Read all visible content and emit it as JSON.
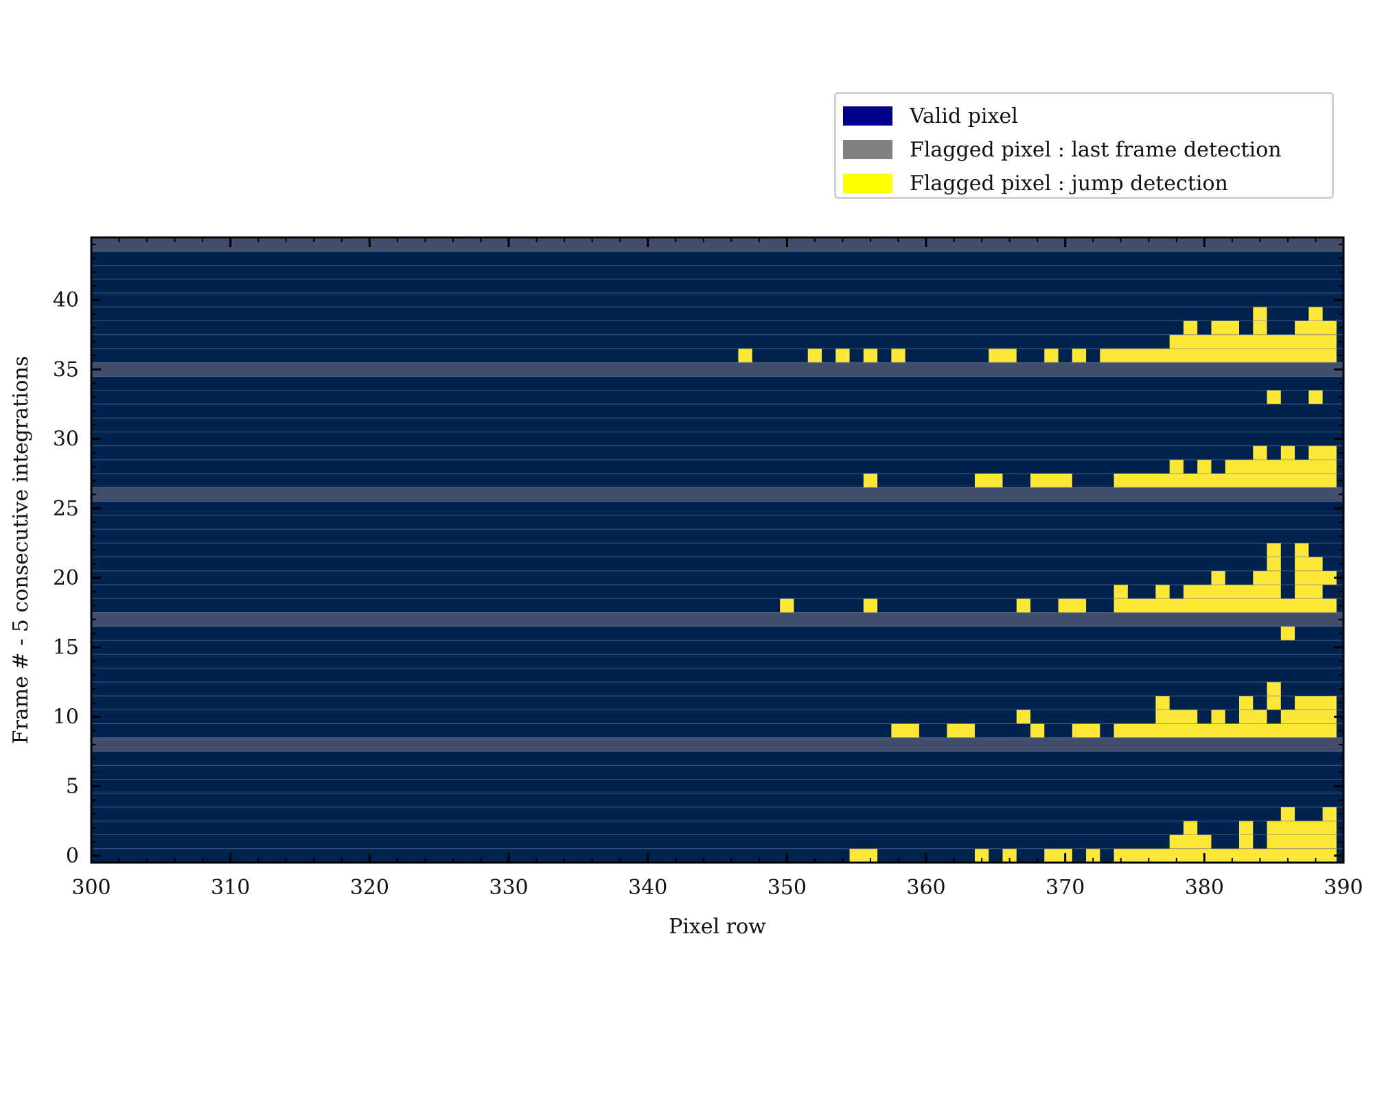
{
  "chart_data": {
    "type": "heatmap",
    "title": "",
    "xlabel": "Pixel row",
    "ylabel": "Frame # - 5 consecutive integrations",
    "xlim": [
      300,
      390
    ],
    "ylim": [
      -0.5,
      44.5
    ],
    "xticks": [
      300,
      310,
      320,
      330,
      340,
      350,
      360,
      370,
      380,
      390
    ],
    "yticks": [
      0,
      5,
      10,
      15,
      20,
      25,
      30,
      35,
      40
    ],
    "grid": "horizontal lines between frames",
    "legend_position": "top-right, outside above plot",
    "legend": [
      {
        "label": "Valid pixel",
        "color": "#00008b",
        "key": "valid"
      },
      {
        "label": "Flagged pixel : last frame detection",
        "color": "#808080",
        "key": "last"
      },
      {
        "label": "Flagged pixel : jump detection",
        "color": "#ffff00",
        "key": "jump"
      }
    ],
    "colors": {
      "valid": "#00224e",
      "last": "#434e6c",
      "jump": "#fde737"
    },
    "last_frame_detection_frames": [
      8,
      17,
      26,
      35,
      44
    ],
    "jump_detection": [
      {
        "frame": 0,
        "ranges": [
          [
            355,
            356
          ],
          [
            364,
            364
          ],
          [
            366,
            366
          ],
          [
            369,
            370
          ],
          [
            372,
            372
          ],
          [
            374,
            389
          ]
        ]
      },
      {
        "frame": 1,
        "ranges": [
          [
            378,
            380
          ],
          [
            383,
            383
          ],
          [
            385,
            389
          ]
        ]
      },
      {
        "frame": 2,
        "ranges": [
          [
            379,
            379
          ],
          [
            383,
            383
          ],
          [
            385,
            389
          ]
        ]
      },
      {
        "frame": 3,
        "ranges": [
          [
            386,
            386
          ],
          [
            389,
            389
          ]
        ]
      },
      {
        "frame": 9,
        "ranges": [
          [
            358,
            359
          ],
          [
            362,
            363
          ],
          [
            368,
            368
          ],
          [
            371,
            372
          ],
          [
            374,
            389
          ]
        ]
      },
      {
        "frame": 10,
        "ranges": [
          [
            367,
            367
          ],
          [
            377,
            379
          ],
          [
            381,
            381
          ],
          [
            383,
            384
          ],
          [
            386,
            389
          ]
        ]
      },
      {
        "frame": 11,
        "ranges": [
          [
            377,
            377
          ],
          [
            383,
            383
          ],
          [
            385,
            385
          ],
          [
            387,
            389
          ]
        ]
      },
      {
        "frame": 12,
        "ranges": [
          [
            385,
            385
          ]
        ]
      },
      {
        "frame": 16,
        "ranges": [
          [
            386,
            386
          ]
        ]
      },
      {
        "frame": 18,
        "ranges": [
          [
            350,
            350
          ],
          [
            356,
            356
          ],
          [
            367,
            367
          ],
          [
            370,
            371
          ],
          [
            374,
            389
          ]
        ]
      },
      {
        "frame": 19,
        "ranges": [
          [
            374,
            374
          ],
          [
            377,
            377
          ],
          [
            379,
            385
          ],
          [
            387,
            388
          ]
        ]
      },
      {
        "frame": 20,
        "ranges": [
          [
            381,
            381
          ],
          [
            384,
            385
          ],
          [
            387,
            389
          ]
        ]
      },
      {
        "frame": 21,
        "ranges": [
          [
            385,
            385
          ],
          [
            387,
            388
          ]
        ]
      },
      {
        "frame": 22,
        "ranges": [
          [
            385,
            385
          ],
          [
            387,
            387
          ]
        ]
      },
      {
        "frame": 27,
        "ranges": [
          [
            356,
            356
          ],
          [
            364,
            365
          ],
          [
            368,
            370
          ],
          [
            374,
            389
          ]
        ]
      },
      {
        "frame": 28,
        "ranges": [
          [
            378,
            378
          ],
          [
            380,
            380
          ],
          [
            382,
            389
          ]
        ]
      },
      {
        "frame": 29,
        "ranges": [
          [
            384,
            384
          ],
          [
            386,
            386
          ],
          [
            388,
            389
          ]
        ]
      },
      {
        "frame": 33,
        "ranges": [
          [
            385,
            385
          ],
          [
            388,
            388
          ]
        ]
      },
      {
        "frame": 36,
        "ranges": [
          [
            347,
            347
          ],
          [
            352,
            352
          ],
          [
            354,
            354
          ],
          [
            356,
            356
          ],
          [
            358,
            358
          ],
          [
            365,
            366
          ],
          [
            369,
            369
          ],
          [
            371,
            371
          ],
          [
            373,
            389
          ]
        ]
      },
      {
        "frame": 37,
        "ranges": [
          [
            378,
            389
          ]
        ]
      },
      {
        "frame": 38,
        "ranges": [
          [
            379,
            379
          ],
          [
            381,
            382
          ],
          [
            384,
            384
          ],
          [
            387,
            389
          ]
        ]
      },
      {
        "frame": 39,
        "ranges": [
          [
            384,
            384
          ],
          [
            388,
            388
          ]
        ]
      }
    ]
  }
}
